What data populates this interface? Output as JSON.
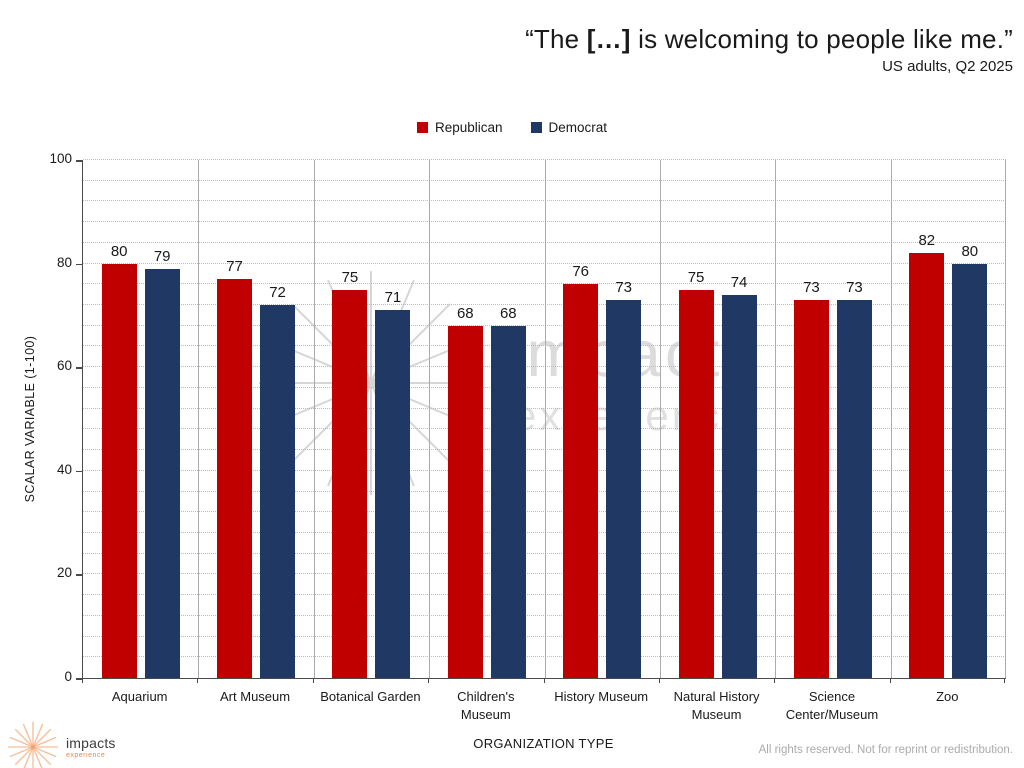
{
  "title": {
    "prefix": "“The ",
    "bracket": "[…]",
    "suffix": " is welcoming to people like me.”",
    "subtitle": "US adults, Q2 2025"
  },
  "legend": [
    {
      "label": "Republican",
      "color": "#C00000"
    },
    {
      "label": "Democrat",
      "color": "#1F3864"
    }
  ],
  "chart_data": {
    "type": "bar",
    "title": "“The […] is welcoming to people like me.”",
    "subtitle": "US adults, Q2 2025",
    "categories": [
      "Aquarium",
      "Art Museum",
      "Botanical Garden",
      "Children's Museum",
      "History Museum",
      "Natural History Museum",
      "Science Center/Museum",
      "Zoo"
    ],
    "tick_labels": [
      "Aquarium",
      "Art Museum",
      "Botanical Garden",
      "Children's\nMuseum",
      "History Museum",
      "Natural History\nMuseum",
      "Science\nCenter/Museum",
      "Zoo"
    ],
    "series": [
      {
        "name": "Republican",
        "color": "#C00000",
        "values": [
          80,
          77,
          75,
          68,
          76,
          75,
          73,
          82
        ]
      },
      {
        "name": "Democrat",
        "color": "#1F3864",
        "values": [
          79,
          72,
          71,
          68,
          73,
          74,
          73,
          80
        ]
      }
    ],
    "xlabel": "ORGANIZATION TYPE",
    "ylabel": "SCALAR VARIABLE (1-100)",
    "ylim": [
      0,
      100
    ],
    "yticks": [
      0,
      20,
      40,
      60,
      80,
      100
    ],
    "grid_step": 4,
    "grid": "dotted-horizontal",
    "legend_position": "top-center"
  },
  "watermark": {
    "word1": "impacts",
    "word2": "experience"
  },
  "footer": {
    "logo_name": "impacts",
    "logo_tagline": "experience",
    "rights": "All rights reserved. Not for reprint or redistribution."
  }
}
